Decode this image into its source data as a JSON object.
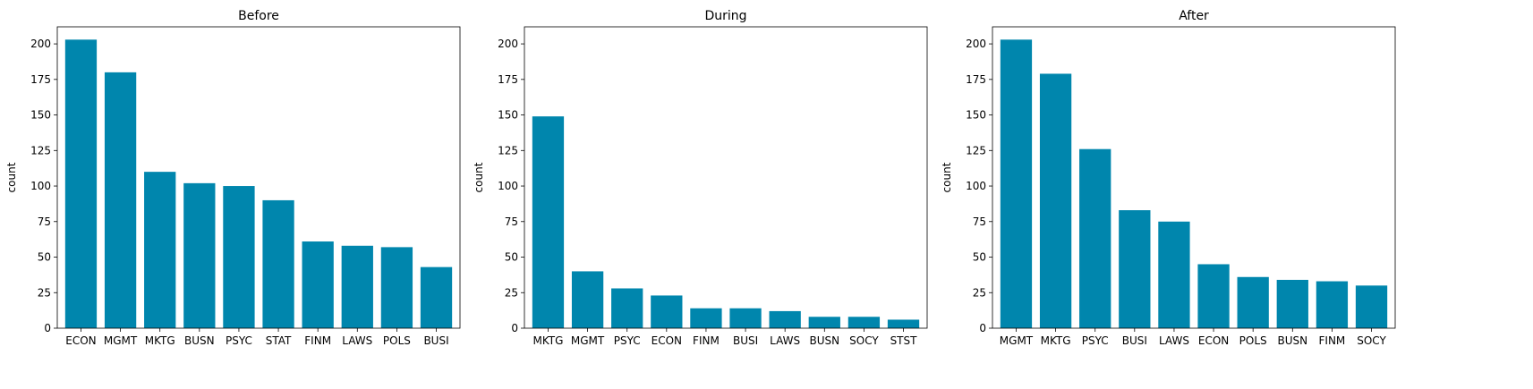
{
  "bar_color": "#0086ad",
  "chart_data": [
    {
      "type": "bar",
      "title": "Before",
      "ylabel": "count",
      "xlabel": "",
      "ylim": [
        0,
        212
      ],
      "yticks": [
        0,
        25,
        50,
        75,
        100,
        125,
        150,
        175,
        200
      ],
      "categories": [
        "ECON",
        "MGMT",
        "MKTG",
        "BUSN",
        "PSYC",
        "STAT",
        "FINM",
        "LAWS",
        "POLS",
        "BUSI"
      ],
      "values": [
        203,
        180,
        110,
        102,
        100,
        90,
        61,
        58,
        57,
        43
      ]
    },
    {
      "type": "bar",
      "title": "During",
      "ylabel": "count",
      "xlabel": "",
      "ylim": [
        0,
        212
      ],
      "yticks": [
        0,
        25,
        50,
        75,
        100,
        125,
        150,
        175,
        200
      ],
      "categories": [
        "MKTG",
        "MGMT",
        "PSYC",
        "ECON",
        "FINM",
        "BUSI",
        "LAWS",
        "BUSN",
        "SOCY",
        "STST"
      ],
      "values": [
        149,
        40,
        28,
        23,
        14,
        14,
        12,
        8,
        8,
        6
      ]
    },
    {
      "type": "bar",
      "title": "After",
      "ylabel": "count",
      "xlabel": "",
      "ylim": [
        0,
        212
      ],
      "yticks": [
        0,
        25,
        50,
        75,
        100,
        125,
        150,
        175,
        200
      ],
      "categories": [
        "MGMT",
        "MKTG",
        "PSYC",
        "BUSI",
        "LAWS",
        "ECON",
        "POLS",
        "BUSN",
        "FINM",
        "SOCY"
      ],
      "values": [
        203,
        179,
        126,
        83,
        75,
        45,
        36,
        34,
        33,
        30
      ]
    }
  ]
}
